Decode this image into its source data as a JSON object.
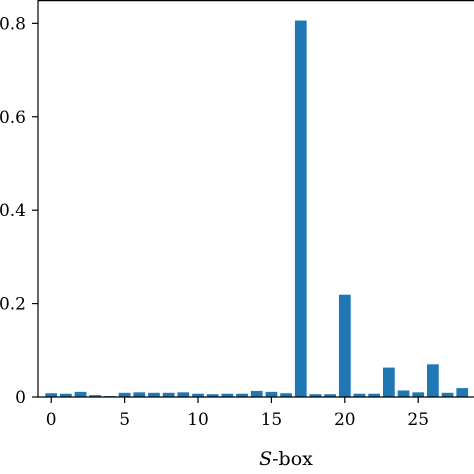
{
  "chart_data": {
    "type": "bar",
    "title": "",
    "xlabel": "S-box",
    "xlabel_parts": {
      "italic": "S",
      "rest": "-box"
    },
    "ylabel": "",
    "x": [
      0,
      1,
      2,
      3,
      4,
      5,
      6,
      7,
      8,
      9,
      10,
      11,
      12,
      13,
      14,
      15,
      16,
      17,
      18,
      19,
      20,
      21,
      22,
      23,
      24,
      25,
      26,
      27,
      28
    ],
    "values": [
      0.008,
      0.007,
      0.011,
      0.004,
      0.002,
      0.009,
      0.01,
      0.009,
      0.009,
      0.01,
      0.007,
      0.006,
      0.007,
      0.007,
      0.013,
      0.011,
      0.008,
      0.806,
      0.006,
      0.006,
      0.219,
      0.007,
      0.007,
      0.063,
      0.014,
      0.01,
      0.07,
      0.009,
      0.019
    ],
    "x_ticks": [
      0,
      5,
      10,
      15,
      20,
      25
    ],
    "x_tick_labels": [
      "0",
      "5",
      "10",
      "15",
      "20",
      "25"
    ],
    "y_ticks": [
      0,
      0.2,
      0.4,
      0.6,
      0.8
    ],
    "y_tick_labels": [
      "0",
      "0.2",
      "0.4",
      "0.6",
      "0.8"
    ],
    "xlim": [
      -0.9,
      28.8
    ],
    "ylim": [
      0,
      0.85
    ],
    "bar_color": "#1f77b4",
    "grid": false,
    "legend": "none"
  }
}
